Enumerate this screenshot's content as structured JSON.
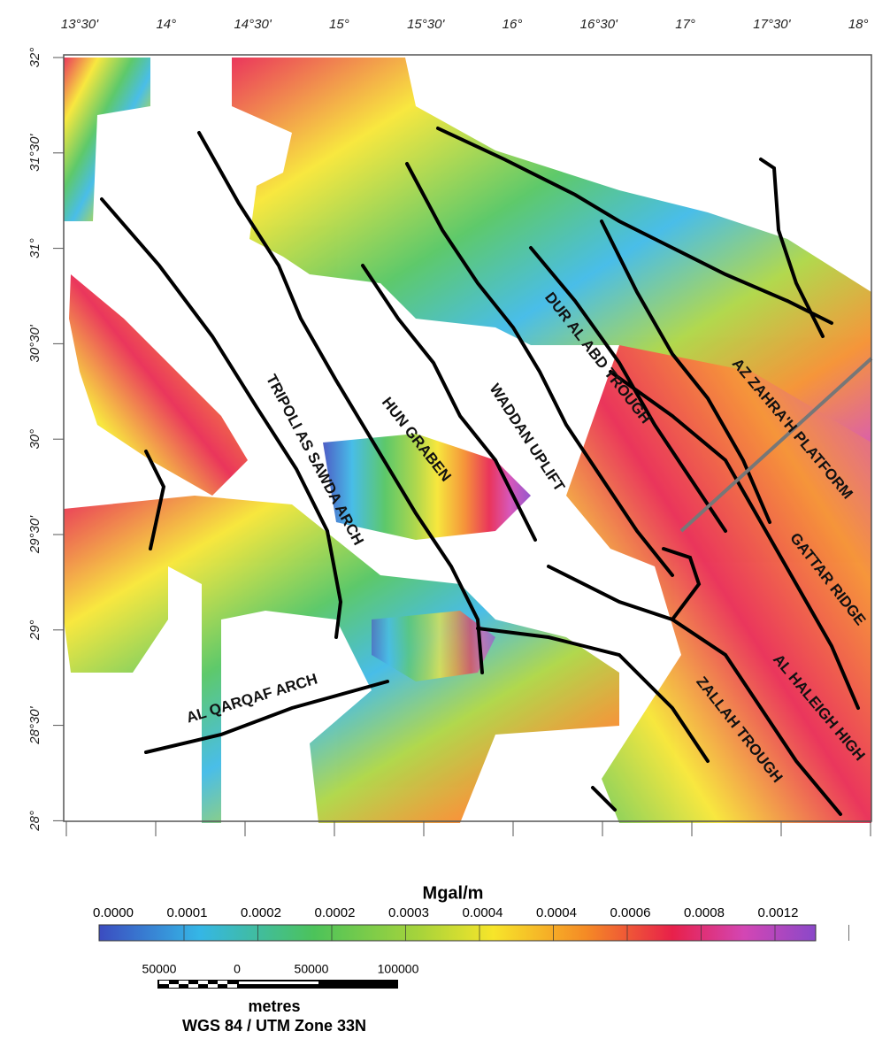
{
  "map": {
    "longitude_labels": [
      "13°30'",
      "14°",
      "14°30'",
      "15°",
      "15°30'",
      "16°",
      "16°30'",
      "17°",
      "17°30'",
      "18°"
    ],
    "latitude_labels": [
      "32°",
      "31°30'",
      "31°",
      "30°30'",
      "30°",
      "29°30'",
      "29°",
      "28°30'",
      "28°"
    ],
    "features": [
      {
        "label": "TRIPOLI AS SAWDA ARCH"
      },
      {
        "label": "HUN GRABEN"
      },
      {
        "label": "WADDAN UPLIFT"
      },
      {
        "label": "DUR AL ABD TROUGH"
      },
      {
        "label": "AZ ZAHRA'H PLATFORM"
      },
      {
        "label": "GATTAR RIDGE"
      },
      {
        "label": "AL HALEIGH HIGH"
      },
      {
        "label": "ZALLAH TROUGH"
      },
      {
        "label": "AL QARQAF ARCH"
      }
    ]
  },
  "legend": {
    "title": "Mgal/m",
    "labels": [
      "0.0000",
      "0.0001",
      "0.0002",
      "0.0002",
      "0.0003",
      "0.0004",
      "0.0004",
      "0.0006",
      "0.0008",
      "0.0012"
    ]
  },
  "scale_bar": {
    "labels": [
      "50000",
      "0",
      "50000",
      "100000"
    ],
    "unit": "metres",
    "projection": "WGS 84 / UTM Zone 33N"
  }
}
